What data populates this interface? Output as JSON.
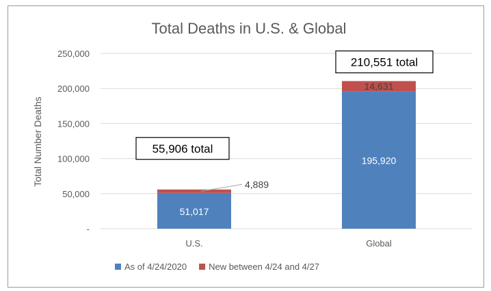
{
  "chart_data": {
    "type": "bar",
    "stacked": true,
    "title": "Total Deaths in U.S. & Global",
    "xlabel": "",
    "ylabel": "Total Number Deaths",
    "ylim": [
      0,
      250000
    ],
    "yticks": [
      {
        "value": 0,
        "label": "-"
      },
      {
        "value": 50000,
        "label": "50,000"
      },
      {
        "value": 100000,
        "label": "100,000"
      },
      {
        "value": 150000,
        "label": "150,000"
      },
      {
        "value": 200000,
        "label": "200,000"
      },
      {
        "value": 250000,
        "label": "250,000"
      }
    ],
    "grid": true,
    "categories": [
      "U.S.",
      "Global"
    ],
    "series": [
      {
        "name": "As of 4/24/2020",
        "color": "#4f81bd",
        "values": [
          51017,
          195920
        ],
        "labels": [
          "51,017",
          "195,920"
        ]
      },
      {
        "name": "New between 4/24 and 4/27",
        "color": "#c0504d",
        "values": [
          4889,
          14631
        ],
        "labels": [
          "4,889",
          "14,631"
        ]
      }
    ],
    "totals": [
      "55,906 total",
      "210,551 total"
    ],
    "legend_position": "bottom"
  }
}
